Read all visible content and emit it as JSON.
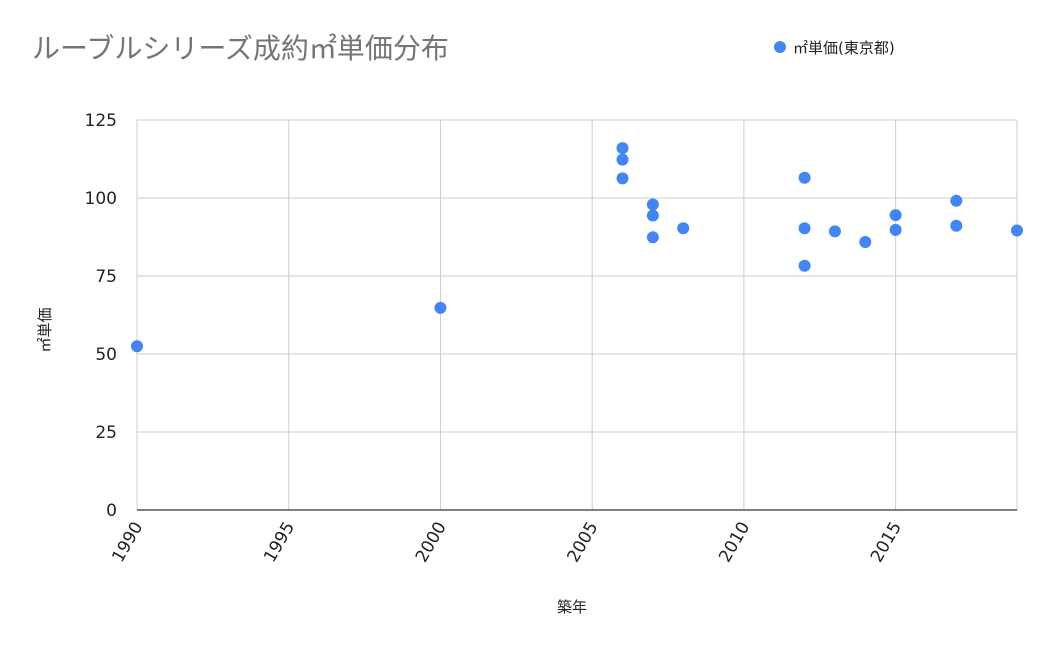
{
  "chart_data": {
    "type": "scatter",
    "title": "ルーブルシリーズ成約㎡単価分布",
    "xlabel": "築年",
    "ylabel": "㎡単価",
    "xlim": [
      1990,
      2019
    ],
    "ylim": [
      0,
      125
    ],
    "x_ticks": [
      1990,
      1995,
      2000,
      2005,
      2010,
      2015
    ],
    "y_ticks": [
      0,
      25,
      50,
      75,
      100,
      125
    ],
    "legend_position": "top-right",
    "grid": true,
    "series": [
      {
        "name": "㎡単価(東京都)",
        "color": "#4285f4",
        "points": [
          {
            "x": 1990,
            "y": 52.5
          },
          {
            "x": 2000,
            "y": 64.8
          },
          {
            "x": 2006,
            "y": 116
          },
          {
            "x": 2006,
            "y": 112.3
          },
          {
            "x": 2006,
            "y": 106.3
          },
          {
            "x": 2007,
            "y": 97.9
          },
          {
            "x": 2007,
            "y": 94.4
          },
          {
            "x": 2007,
            "y": 87.4
          },
          {
            "x": 2008,
            "y": 90.3
          },
          {
            "x": 2012,
            "y": 106.5
          },
          {
            "x": 2012,
            "y": 90.3
          },
          {
            "x": 2012,
            "y": 78.3
          },
          {
            "x": 2013,
            "y": 89.3
          },
          {
            "x": 2014,
            "y": 85.9
          },
          {
            "x": 2015,
            "y": 94.5
          },
          {
            "x": 2015,
            "y": 89.8
          },
          {
            "x": 2017,
            "y": 99.1
          },
          {
            "x": 2017,
            "y": 91.1
          },
          {
            "x": 2019,
            "y": 89.6
          }
        ]
      }
    ]
  }
}
